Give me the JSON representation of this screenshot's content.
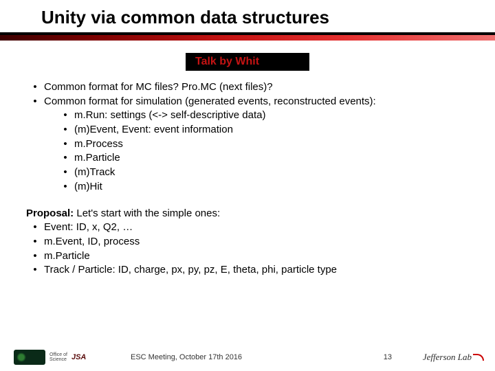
{
  "title": "Unity via common data structures",
  "talk_by": "Talk by Whit",
  "bullets": [
    {
      "t": "Common format for MC files? Pro.MC (next files)?"
    },
    {
      "t": "Common format for simulation (generated events, reconstructed events):",
      "sub": [
        "m.Run: settings (<-> self-descriptive data)",
        "(m)Event, Event: event information",
        "m.Process",
        "m.Particle",
        "(m)Track",
        "(m)Hit"
      ]
    }
  ],
  "proposal": {
    "lead_bold": "Proposal:",
    "lead_rest": " Let's start with the simple ones:",
    "items": [
      "Event: ID, x, Q2, …",
      "m.Event, ID, process",
      "m.Particle",
      "Track / Particle: ID, charge, px, py, pz, E, theta, phi, particle type"
    ]
  },
  "footer": {
    "office_line1": "Office of",
    "office_line2": "Science",
    "jsa": "JSA",
    "meeting": "ESC Meeting, October 17th 2016",
    "page": "13",
    "jlab": "Jefferson Lab"
  },
  "colors": {
    "talk_by_text": "#c41313",
    "talk_by_bg": "#000000"
  }
}
